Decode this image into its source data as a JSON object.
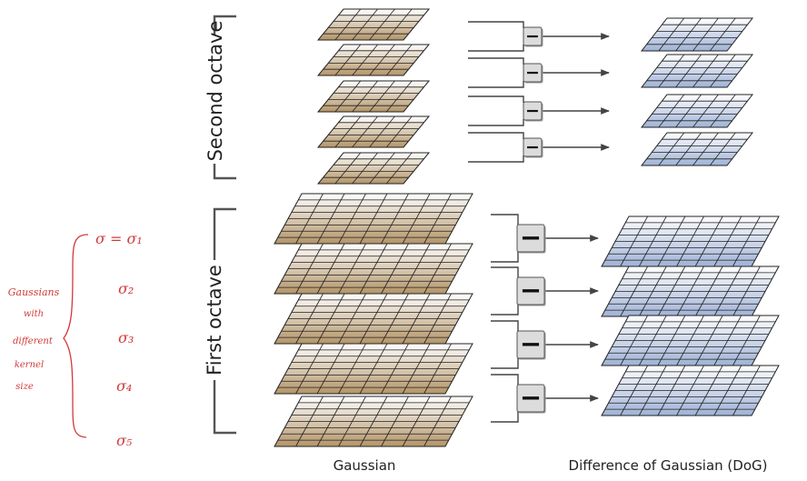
{
  "diagram": {
    "octave_labels": {
      "second": "Second octave",
      "first": "First octave"
    },
    "column_labels": {
      "gaussian": "Gaussian",
      "dog": "Difference of Gaussian (DoG)"
    },
    "operator_symbol": "−",
    "annotation": {
      "note_lines": [
        "Gaussians",
        "with",
        "different",
        "kernel",
        "size"
      ],
      "sigmas": [
        "σ = σ₁",
        "σ₂",
        "σ₃",
        "σ₄",
        "σ₅"
      ]
    },
    "colors": {
      "gaussian_tint": "#b9a07a",
      "dog_tint": "#a8b8d8",
      "grid_line": "#222222",
      "bracket": "#555555",
      "annotation_ink": "#d23a3a",
      "operator_fill": "#dcdcdc"
    }
  }
}
